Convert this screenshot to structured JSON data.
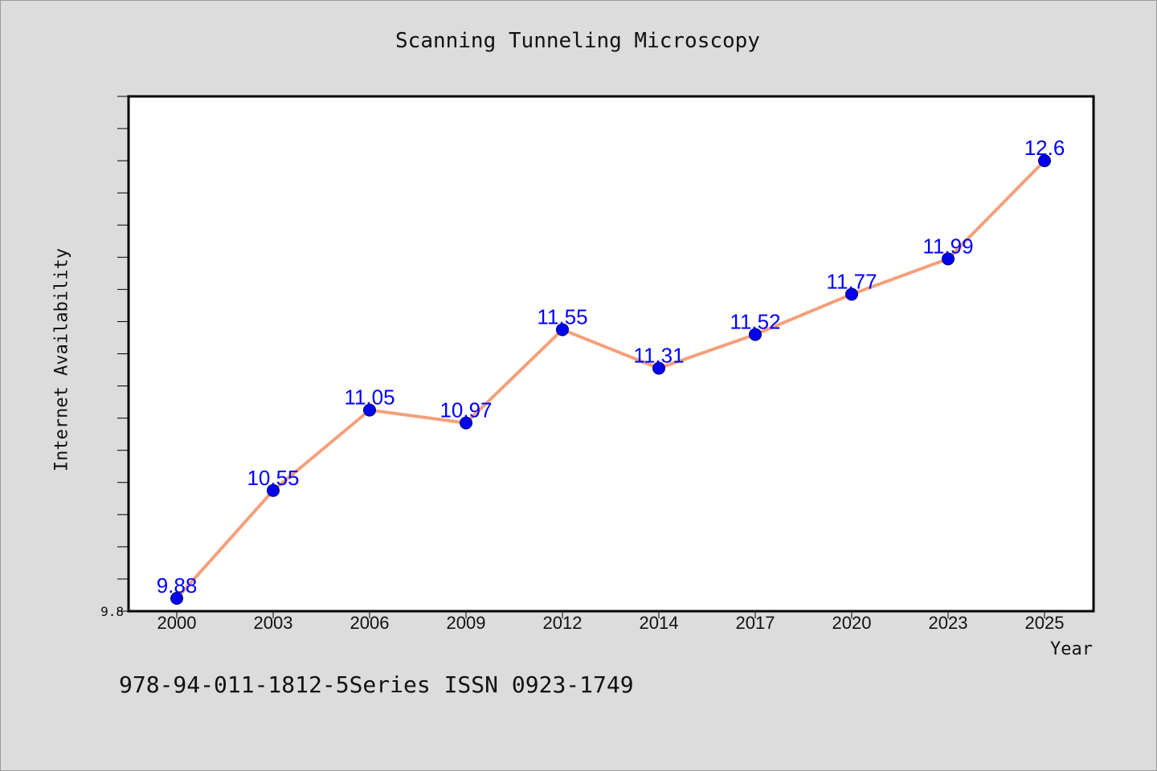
{
  "chart_data": {
    "type": "line",
    "title": "Scanning Tunneling Microscopy",
    "xlabel": "Year",
    "ylabel": "Internet Availability",
    "categories": [
      "2000",
      "2003",
      "2006",
      "2009",
      "2012",
      "2014",
      "2017",
      "2020",
      "2023",
      "2025"
    ],
    "series": [
      {
        "values": [
          9.88,
          10.55,
          11.05,
          10.97,
          11.55,
          11.31,
          11.52,
          11.77,
          11.99,
          12.6
        ],
        "data_labels": [
          "9.88",
          "10.55",
          "11.05",
          "10.97",
          "11.55",
          "11.31",
          "11.52",
          "11.77",
          "11.99",
          "12.6"
        ]
      }
    ],
    "ylim": [
      9.8,
      13.0
    ],
    "y_tick_labels": [
      "9.8"
    ],
    "grid": false,
    "legend": "none",
    "colors": {
      "line": "#f4a07a",
      "marker": "#0000ee",
      "data_label": "#0000ff",
      "plot_background": "#ffffff",
      "page_background": "#dcdcdc"
    }
  },
  "footnote": "978-94-011-1812-5Series ISSN 0923-1749"
}
